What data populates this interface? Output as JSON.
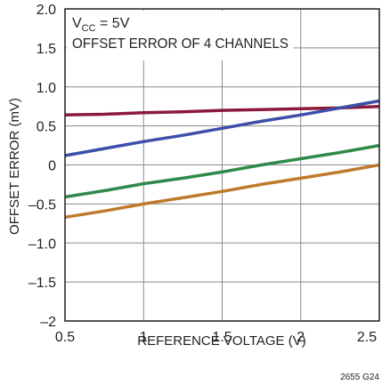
{
  "chart_data": {
    "type": "line",
    "xlabel": "REFERENCE VOLTAGE (V)",
    "ylabel": "OFFSET ERROR  (mV)",
    "xlim": [
      0.5,
      2.5
    ],
    "ylim": [
      -2.0,
      2.0
    ],
    "x_ticks": [
      0.5,
      1.0,
      1.5,
      2.0,
      2.5
    ],
    "x_tick_labels": [
      "0.5",
      "1",
      "1.5",
      "2",
      "2.5"
    ],
    "y_ticks": [
      -2.0,
      -1.5,
      -1.0,
      -0.5,
      0.0,
      0.5,
      1.0,
      1.5,
      2.0
    ],
    "y_tick_labels": [
      "–2",
      "–1.5",
      "–1.0",
      "–0.5",
      "0",
      "0.5",
      "1.0",
      "1.5",
      "2.0"
    ],
    "grid": true,
    "annotations": {
      "vcc_prefix": "V",
      "vcc_subscript": "CC",
      "vcc_suffix": " = 5V",
      "subtitle": "OFFSET ERROR OF 4 CHANNELS"
    },
    "figure_id": "2655 G24",
    "series": [
      {
        "color": "#8b1a3a",
        "x": [
          0.5,
          0.75,
          1.0,
          1.25,
          1.5,
          1.75,
          2.0,
          2.25,
          2.5
        ],
        "y": [
          0.64,
          0.65,
          0.67,
          0.68,
          0.7,
          0.71,
          0.72,
          0.73,
          0.75
        ]
      },
      {
        "color": "#3d4fa8",
        "x": [
          0.5,
          0.75,
          1.0,
          1.25,
          1.5,
          1.75,
          2.0,
          2.25,
          2.5
        ],
        "y": [
          0.12,
          0.21,
          0.3,
          0.38,
          0.47,
          0.56,
          0.64,
          0.73,
          0.82
        ]
      },
      {
        "color": "#2e8a4a",
        "x": [
          0.5,
          0.75,
          1.0,
          1.25,
          1.5,
          1.75,
          2.0,
          2.25,
          2.5
        ],
        "y": [
          -0.41,
          -0.33,
          -0.24,
          -0.17,
          -0.09,
          0.0,
          0.08,
          0.16,
          0.25
        ]
      },
      {
        "color": "#c07a2c",
        "x": [
          0.5,
          0.75,
          1.0,
          1.25,
          1.5,
          1.75,
          2.0,
          2.25,
          2.5
        ],
        "y": [
          -0.67,
          -0.59,
          -0.5,
          -0.42,
          -0.34,
          -0.25,
          -0.17,
          -0.09,
          0.0
        ]
      }
    ]
  }
}
